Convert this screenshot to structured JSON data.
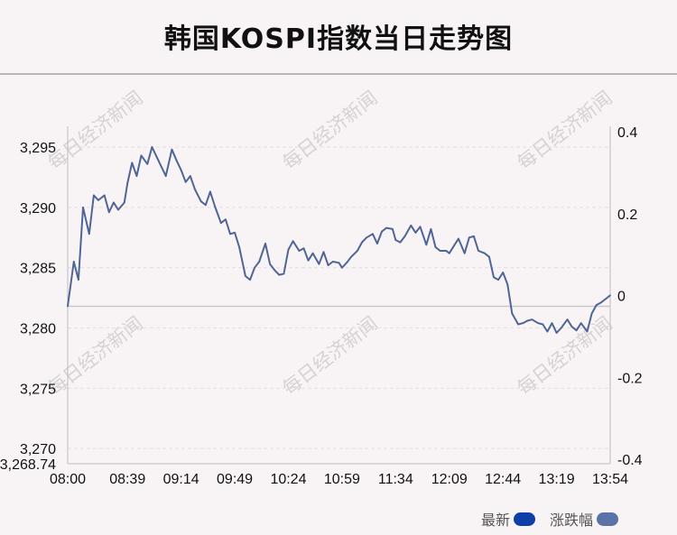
{
  "title": "韩国KOSPI指数当日走势图",
  "watermark": "每日经济新闻",
  "legend": {
    "latest_label": "最新",
    "change_label": "涨跌幅",
    "latest_color": "#0e3ea8",
    "change_color": "#5a72a8"
  },
  "colors": {
    "line": "#4f6596",
    "baseline": "#c8c8c8",
    "grid": "#e2dfe0"
  },
  "chart_data": {
    "type": "line",
    "title": "韩国KOSPI指数当日走势图",
    "x_tick_labels": [
      "08:00",
      "08:39",
      "09:14",
      "09:49",
      "10:24",
      "10:59",
      "11:34",
      "12:09",
      "12:44",
      "13:19",
      "13:54"
    ],
    "x_range": [
      "08:00",
      "13:54"
    ],
    "y_left_ticks": [
      "3,295",
      "3,290",
      "3,285",
      "3,280",
      "3,275",
      "3,270"
    ],
    "y_left_min_label": "3,268.74",
    "y_left_range": [
      3268.74,
      3296.5
    ],
    "y_right_ticks": [
      "0.4",
      "0.2",
      "0",
      "-0.2",
      "-0.4"
    ],
    "y_right_range": [
      -0.4,
      0.4
    ],
    "baseline_value": 3281.8,
    "grid": true,
    "legend_position": "bottom-right",
    "series": [
      {
        "name": "最新",
        "x": [
          "08:00",
          "08:04",
          "08:07",
          "08:10",
          "08:14",
          "08:17",
          "08:20",
          "08:24",
          "08:27",
          "08:30",
          "08:33",
          "08:37",
          "08:39",
          "08:42",
          "08:45",
          "08:48",
          "08:52",
          "08:55",
          "08:58",
          "09:01",
          "09:04",
          "09:08",
          "09:11",
          "09:14",
          "09:17",
          "09:20",
          "09:23",
          "09:27",
          "09:30",
          "09:33",
          "09:36",
          "09:40",
          "09:43",
          "09:46",
          "09:49",
          "09:52",
          "09:56",
          "09:59",
          "10:02",
          "10:05",
          "10:09",
          "10:12",
          "10:15",
          "10:18",
          "10:21",
          "10:24",
          "10:27",
          "10:31",
          "10:34",
          "10:37",
          "10:40",
          "10:44",
          "10:47",
          "10:50",
          "10:53",
          "10:57",
          "10:59",
          "11:02",
          "11:05",
          "11:09",
          "11:12",
          "11:15",
          "11:19",
          "11:22",
          "11:25",
          "11:28",
          "11:32",
          "11:34",
          "11:37",
          "11:40",
          "11:44",
          "11:47",
          "11:50",
          "11:54",
          "11:57",
          "12:00",
          "12:03",
          "12:07",
          "12:09",
          "12:12",
          "12:15",
          "12:19",
          "12:22",
          "12:25",
          "12:28",
          "12:32",
          "12:35",
          "12:38",
          "12:41",
          "12:44",
          "12:47",
          "12:50",
          "12:54",
          "12:57",
          "13:00",
          "13:03",
          "13:07",
          "13:10",
          "13:13",
          "13:16",
          "13:19",
          "13:22",
          "13:26",
          "13:29",
          "13:32",
          "13:35",
          "13:39",
          "13:42",
          "13:45",
          "13:48",
          "13:51",
          "13:54"
        ],
        "values": [
          3281.8,
          3285.5,
          3284.0,
          3290.0,
          3287.8,
          3291.0,
          3290.6,
          3291.0,
          3289.6,
          3290.4,
          3289.8,
          3290.4,
          3292.0,
          3293.7,
          3292.6,
          3294.3,
          3293.6,
          3295.0,
          3294.2,
          3293.4,
          3292.6,
          3294.8,
          3293.9,
          3293.1,
          3292.1,
          3292.6,
          3291.5,
          3290.5,
          3290.2,
          3291.3,
          3290.1,
          3288.7,
          3289.0,
          3287.8,
          3287.9,
          3286.7,
          3284.3,
          3284.0,
          3285.0,
          3285.5,
          3287.0,
          3285.3,
          3284.8,
          3284.4,
          3284.5,
          3286.5,
          3287.2,
          3286.4,
          3286.6,
          3285.6,
          3286.2,
          3285.3,
          3286.3,
          3285.2,
          3285.5,
          3285.4,
          3285.0,
          3285.4,
          3285.9,
          3286.4,
          3287.1,
          3287.5,
          3287.8,
          3287.0,
          3288.0,
          3288.3,
          3288.2,
          3287.3,
          3287.1,
          3287.6,
          3288.5,
          3287.9,
          3288.4,
          3286.9,
          3288.2,
          3286.7,
          3286.4,
          3286.4,
          3286.2,
          3286.8,
          3287.4,
          3286.2,
          3287.5,
          3287.6,
          3286.4,
          3286.2,
          3285.9,
          3284.2,
          3284.0,
          3284.6,
          3283.6,
          3281.2,
          3280.3,
          3280.4,
          3280.6,
          3280.7,
          3280.4,
          3280.3,
          3279.7,
          3280.4,
          3279.6,
          3280.0,
          3280.7,
          3280.1,
          3279.8,
          3280.4,
          3279.7,
          3281.2,
          3281.9,
          3282.1,
          3282.4,
          3282.7
        ]
      }
    ]
  }
}
